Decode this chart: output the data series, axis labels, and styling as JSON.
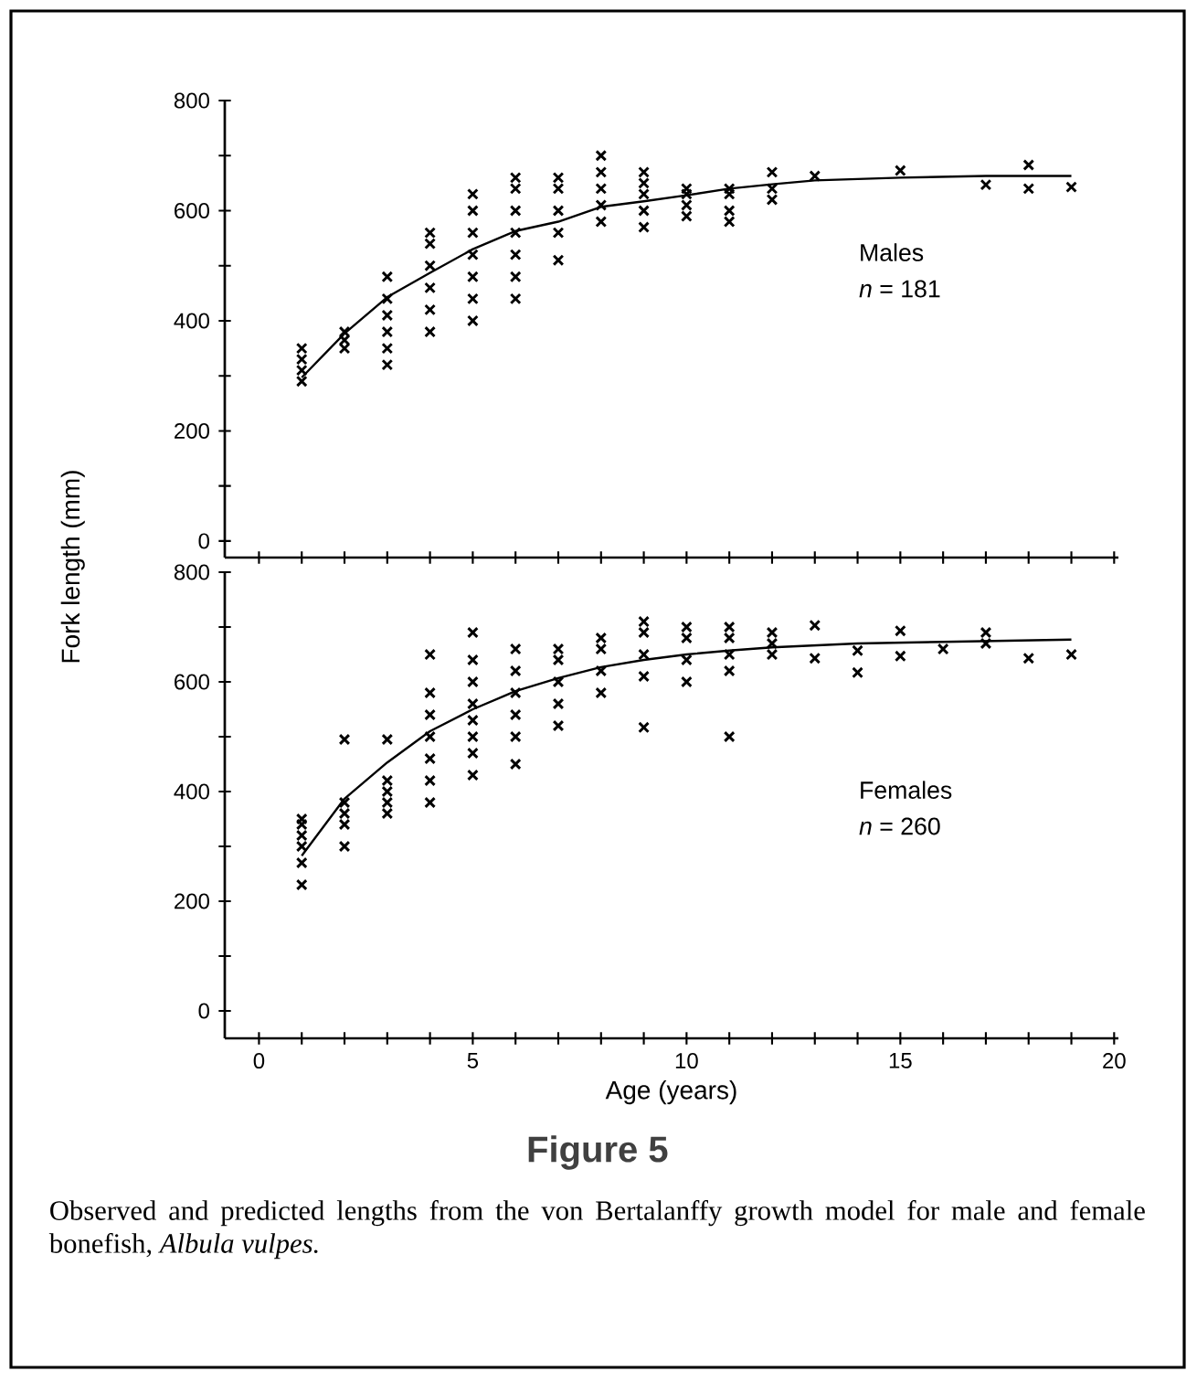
{
  "chart_data": [
    {
      "type": "scatter",
      "ylabel": "Fork length (mm)",
      "xlim": [
        -0.8,
        20.1
      ],
      "ylim": [
        -30,
        800
      ],
      "xticks": [
        0,
        {
          "value": 1,
          "label": null
        },
        {
          "value": 2,
          "label": null
        },
        {
          "value": 3,
          "label": null
        },
        {
          "value": 4,
          "label": null
        },
        5,
        {
          "value": 6,
          "label": null
        },
        {
          "value": 7,
          "label": null
        },
        {
          "value": 8,
          "label": null
        },
        {
          "value": 9,
          "label": null
        },
        10,
        {
          "value": 11,
          "label": null
        },
        {
          "value": 12,
          "label": null
        },
        {
          "value": 13,
          "label": null
        },
        {
          "value": 14,
          "label": null
        },
        15,
        {
          "value": 16,
          "label": null
        },
        {
          "value": 17,
          "label": null
        },
        {
          "value": 18,
          "label": null
        },
        {
          "value": 19,
          "label": null
        },
        20
      ],
      "yticks": [
        0,
        {
          "value": 100,
          "label": null
        },
        200,
        {
          "value": 300,
          "label": null
        },
        400,
        {
          "value": 500,
          "label": null
        },
        600,
        {
          "value": 700,
          "label": null
        },
        800
      ],
      "tick_labels": "y",
      "series": [
        {
          "color": "#000000",
          "marker": "cross",
          "x": [
            1,
            1,
            1,
            1,
            2,
            2,
            2,
            3,
            3,
            3,
            3,
            3,
            3,
            4,
            4,
            4,
            4,
            4,
            4,
            5,
            5,
            5,
            5,
            5,
            5,
            5,
            6,
            6,
            6,
            6,
            6,
            6,
            6,
            7,
            7,
            7,
            7,
            7,
            8,
            8,
            8,
            8,
            8,
            9,
            9,
            9,
            9,
            9,
            10,
            10,
            10,
            10,
            11,
            11,
            11,
            11,
            12,
            12,
            12,
            13,
            15,
            17,
            18,
            18,
            19
          ],
          "values": [
            290,
            310,
            330,
            350,
            350,
            365,
            380,
            320,
            350,
            380,
            410,
            440,
            480,
            380,
            420,
            460,
            500,
            540,
            560,
            400,
            440,
            480,
            520,
            560,
            600,
            630,
            440,
            480,
            520,
            560,
            600,
            640,
            660,
            510,
            560,
            600,
            640,
            660,
            580,
            610,
            640,
            670,
            700,
            570,
            600,
            630,
            650,
            670,
            590,
            610,
            630,
            640,
            580,
            600,
            630,
            640,
            620,
            640,
            670,
            663,
            673,
            647,
            683,
            640,
            643
          ]
        },
        {
          "type": "line",
          "color": "#000000",
          "marker": "none",
          "line_style": "solid",
          "x": [
            1,
            2,
            3,
            4,
            5,
            6,
            7,
            8,
            9,
            10,
            11,
            12,
            13,
            15,
            17,
            19
          ],
          "values": [
            297,
            377,
            443,
            487,
            530,
            563,
            580,
            607,
            617,
            628,
            640,
            648,
            655,
            660,
            663,
            663
          ]
        }
      ],
      "annotations": [
        "Males",
        "*n* = 181"
      ]
    },
    {
      "type": "scatter",
      "xlabel": "Age (years)",
      "xlim": [
        -0.8,
        20.1
      ],
      "ylim": [
        -50,
        800
      ],
      "xticks": [
        0,
        {
          "value": 1,
          "label": null
        },
        {
          "value": 2,
          "label": null
        },
        {
          "value": 3,
          "label": null
        },
        {
          "value": 4,
          "label": null
        },
        5,
        {
          "value": 6,
          "label": null
        },
        {
          "value": 7,
          "label": null
        },
        {
          "value": 8,
          "label": null
        },
        {
          "value": 9,
          "label": null
        },
        10,
        {
          "value": 11,
          "label": null
        },
        {
          "value": 12,
          "label": null
        },
        {
          "value": 13,
          "label": null
        },
        {
          "value": 14,
          "label": null
        },
        15,
        {
          "value": 16,
          "label": null
        },
        {
          "value": 17,
          "label": null
        },
        {
          "value": 18,
          "label": null
        },
        {
          "value": 19,
          "label": null
        },
        20
      ],
      "yticks": [
        0,
        {
          "value": 100,
          "label": null
        },
        200,
        {
          "value": 300,
          "label": null
        },
        400,
        {
          "value": 500,
          "label": null
        },
        600,
        {
          "value": 700,
          "label": null
        },
        800
      ],
      "series": [
        {
          "color": "#000000",
          "marker": "cross",
          "x": [
            1,
            1,
            1,
            1,
            1,
            1,
            2,
            2,
            2,
            2,
            2,
            3,
            3,
            3,
            3,
            3,
            4,
            4,
            4,
            4,
            4,
            4,
            4,
            5,
            5,
            5,
            5,
            5,
            5,
            5,
            5,
            6,
            6,
            6,
            6,
            6,
            6,
            7,
            7,
            7,
            7,
            7,
            8,
            8,
            8,
            8,
            9,
            9,
            9,
            9,
            9,
            10,
            10,
            10,
            10,
            11,
            11,
            11,
            11,
            11,
            12,
            12,
            12,
            13,
            13,
            14,
            14,
            15,
            15,
            16,
            17,
            17,
            18,
            19
          ],
          "values": [
            230,
            270,
            300,
            320,
            340,
            350,
            300,
            340,
            360,
            380,
            495,
            360,
            380,
            400,
            420,
            495,
            380,
            420,
            460,
            500,
            540,
            580,
            650,
            430,
            470,
            500,
            530,
            560,
            600,
            640,
            690,
            450,
            500,
            540,
            580,
            620,
            660,
            520,
            560,
            600,
            640,
            660,
            580,
            620,
            660,
            680,
            517,
            610,
            650,
            690,
            710,
            600,
            640,
            680,
            700,
            500,
            620,
            650,
            680,
            700,
            650,
            670,
            690,
            703,
            643,
            657,
            617,
            693,
            647,
            660,
            670,
            690,
            643,
            650
          ]
        },
        {
          "type": "line",
          "color": "#000000",
          "marker": "none",
          "line_style": "solid",
          "x": [
            1,
            2,
            3,
            4,
            5,
            6,
            7,
            8,
            9,
            10,
            11,
            12,
            14,
            16,
            19
          ],
          "values": [
            283,
            387,
            453,
            510,
            550,
            583,
            607,
            627,
            640,
            650,
            657,
            663,
            670,
            673,
            677
          ]
        }
      ],
      "annotations": [
        "Females",
        "*n* = 260",
        "Figure 5",
        "Observed and predicted lengths from the von Bertalanffy growth model for male and female bonefish, *Albula vulpes.*"
      ]
    }
  ]
}
